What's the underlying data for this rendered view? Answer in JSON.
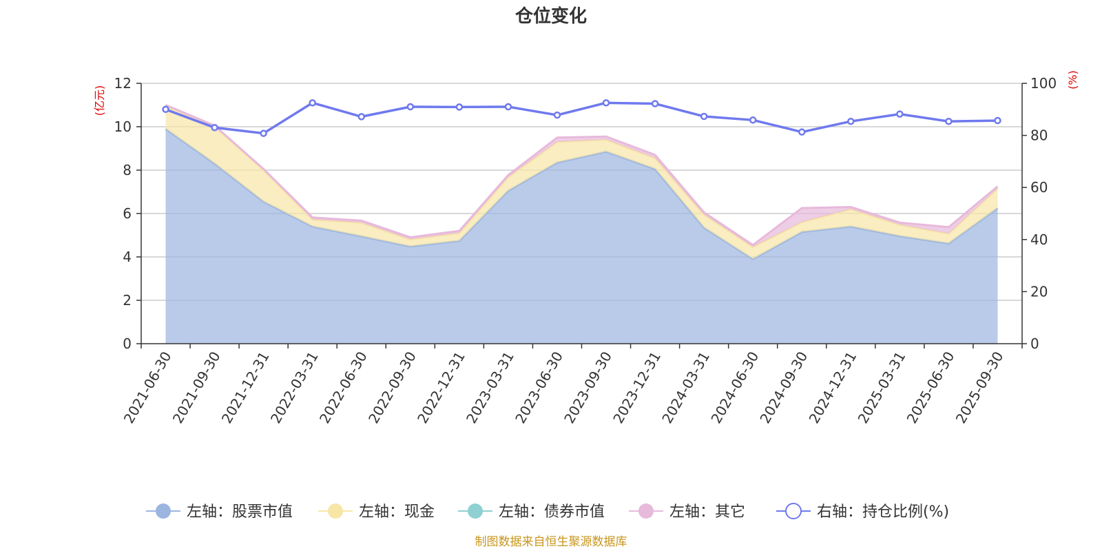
{
  "chart_data": {
    "type": "area",
    "title": "仓位变化",
    "x": [
      "2021-06-30",
      "2021-09-30",
      "2021-12-31",
      "2022-03-31",
      "2022-06-30",
      "2022-09-30",
      "2022-12-31",
      "2023-03-31",
      "2023-06-30",
      "2023-09-30",
      "2023-12-31",
      "2024-03-31",
      "2024-06-30",
      "2024-09-30",
      "2024-12-31",
      "2025-03-31",
      "2025-06-30",
      "2025-09-30"
    ],
    "y_left": {
      "unit": "(亿元)",
      "range": [
        0,
        12
      ],
      "ticks": [
        "0",
        "2",
        "4",
        "6",
        "8",
        "10",
        "12"
      ]
    },
    "y_right": {
      "unit": "(%)",
      "range": [
        0,
        100
      ],
      "ticks": [
        "0",
        "20",
        "40",
        "60",
        "80",
        "100"
      ]
    },
    "series": [
      {
        "name": "左轴：股票市值",
        "axis": "left",
        "kind": "stacked-area",
        "color": "#9bb5e0",
        "values": [
          9.9,
          8.3,
          6.55,
          5.4,
          4.95,
          4.48,
          4.74,
          7.05,
          8.35,
          8.85,
          8.05,
          5.35,
          3.9,
          5.15,
          5.4,
          4.96,
          4.62,
          6.25
        ]
      },
      {
        "name": "左轴：现金",
        "axis": "left",
        "kind": "stacked-area",
        "color": "#f7e6a6",
        "values": [
          1.05,
          1.7,
          1.45,
          0.32,
          0.62,
          0.32,
          0.36,
          0.62,
          0.95,
          0.55,
          0.5,
          0.6,
          0.55,
          0.45,
          0.8,
          0.52,
          0.45,
          0.9
        ]
      },
      {
        "name": "左轴：债券市值",
        "axis": "left",
        "kind": "stacked-area",
        "color": "#8fd0d2",
        "values": [
          0,
          0,
          0,
          0,
          0,
          0,
          0,
          0,
          0,
          0,
          0,
          0,
          0,
          0,
          0,
          0,
          0,
          0
        ]
      },
      {
        "name": "左轴：其它",
        "axis": "left",
        "kind": "stacked-area",
        "color": "#e7b9db",
        "values": [
          0.05,
          0.05,
          0.05,
          0.1,
          0.1,
          0.1,
          0.1,
          0.1,
          0.2,
          0.15,
          0.15,
          0.1,
          0.1,
          0.65,
          0.1,
          0.1,
          0.3,
          0.1
        ]
      },
      {
        "name": "右轴：持仓比例(%)",
        "axis": "right",
        "kind": "line",
        "color": "#6f79ee",
        "values": [
          90.0,
          83.0,
          80.8,
          92.5,
          87.2,
          91.0,
          90.9,
          91.0,
          87.8,
          92.5,
          92.2,
          87.3,
          85.9,
          81.3,
          85.4,
          88.2,
          85.4,
          85.7
        ]
      }
    ],
    "grid": true,
    "legend_position": "bottom"
  },
  "footer": {
    "source": "制图数据来自恒生聚源数据库"
  }
}
